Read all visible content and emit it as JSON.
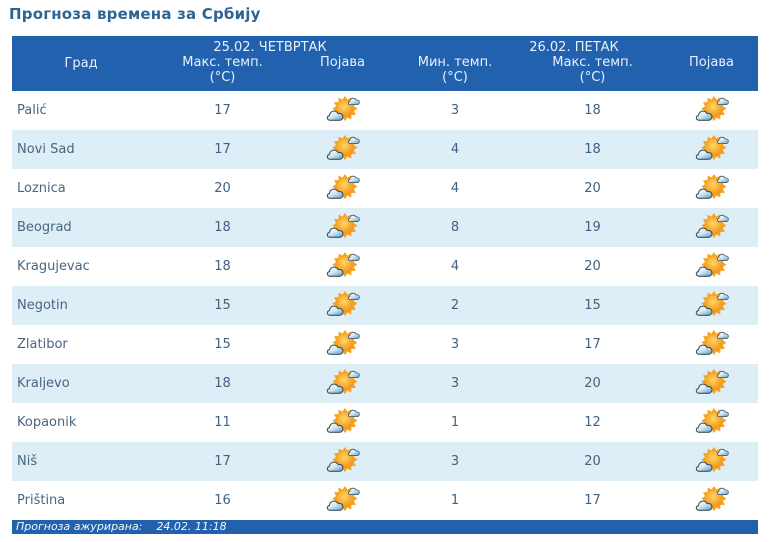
{
  "page_title": "Прогноза времена за Србију",
  "table": {
    "day_groups": [
      {
        "date": "25.02. ЧЕТВРТАК"
      },
      {
        "date": "26.02. ПЕТАК"
      }
    ],
    "columns": {
      "city": "Град",
      "max_temp": "Макс. темп.",
      "min_temp": "Мин. темп.",
      "unit": "(°C)",
      "phenomenon": "Појава"
    }
  },
  "rows": [
    {
      "city": "Palić",
      "day1_max": "17",
      "day1_icon": "partly-cloudy",
      "day2_min": "3",
      "day2_max": "18",
      "day2_icon": "partly-cloudy"
    },
    {
      "city": "Novi Sad",
      "day1_max": "17",
      "day1_icon": "partly-cloudy",
      "day2_min": "4",
      "day2_max": "18",
      "day2_icon": "partly-cloudy"
    },
    {
      "city": "Loznica",
      "day1_max": "20",
      "day1_icon": "partly-cloudy",
      "day2_min": "4",
      "day2_max": "20",
      "day2_icon": "partly-cloudy"
    },
    {
      "city": "Beograd",
      "day1_max": "18",
      "day1_icon": "partly-cloudy",
      "day2_min": "8",
      "day2_max": "19",
      "day2_icon": "partly-cloudy"
    },
    {
      "city": "Kragujevac",
      "day1_max": "18",
      "day1_icon": "partly-cloudy",
      "day2_min": "4",
      "day2_max": "20",
      "day2_icon": "partly-cloudy"
    },
    {
      "city": "Negotin",
      "day1_max": "15",
      "day1_icon": "partly-cloudy",
      "day2_min": "2",
      "day2_max": "15",
      "day2_icon": "partly-cloudy"
    },
    {
      "city": "Zlatibor",
      "day1_max": "15",
      "day1_icon": "partly-cloudy",
      "day2_min": "3",
      "day2_max": "17",
      "day2_icon": "partly-cloudy"
    },
    {
      "city": "Kraljevo",
      "day1_max": "18",
      "day1_icon": "partly-cloudy",
      "day2_min": "3",
      "day2_max": "20",
      "day2_icon": "partly-cloudy"
    },
    {
      "city": "Kopaonik",
      "day1_max": "11",
      "day1_icon": "partly-cloudy",
      "day2_min": "1",
      "day2_max": "12",
      "day2_icon": "partly-cloudy"
    },
    {
      "city": "Niš",
      "day1_max": "17",
      "day1_icon": "partly-cloudy",
      "day2_min": "3",
      "day2_max": "20",
      "day2_icon": "partly-cloudy"
    },
    {
      "city": "Priština",
      "day1_max": "16",
      "day1_icon": "partly-cloudy",
      "day2_min": "1",
      "day2_max": "17",
      "day2_icon": "partly-cloudy"
    }
  ],
  "footer": {
    "label": "Прогноза ажурирана:",
    "timestamp": "24.02. 11:18"
  },
  "colors": {
    "header_bg": "#2161ae",
    "stripe_bg": "#ddeef7",
    "title_color": "#2d6496",
    "city_text": "#4a6580",
    "number_text": "#426180",
    "header_text": "#e9f1fb"
  }
}
